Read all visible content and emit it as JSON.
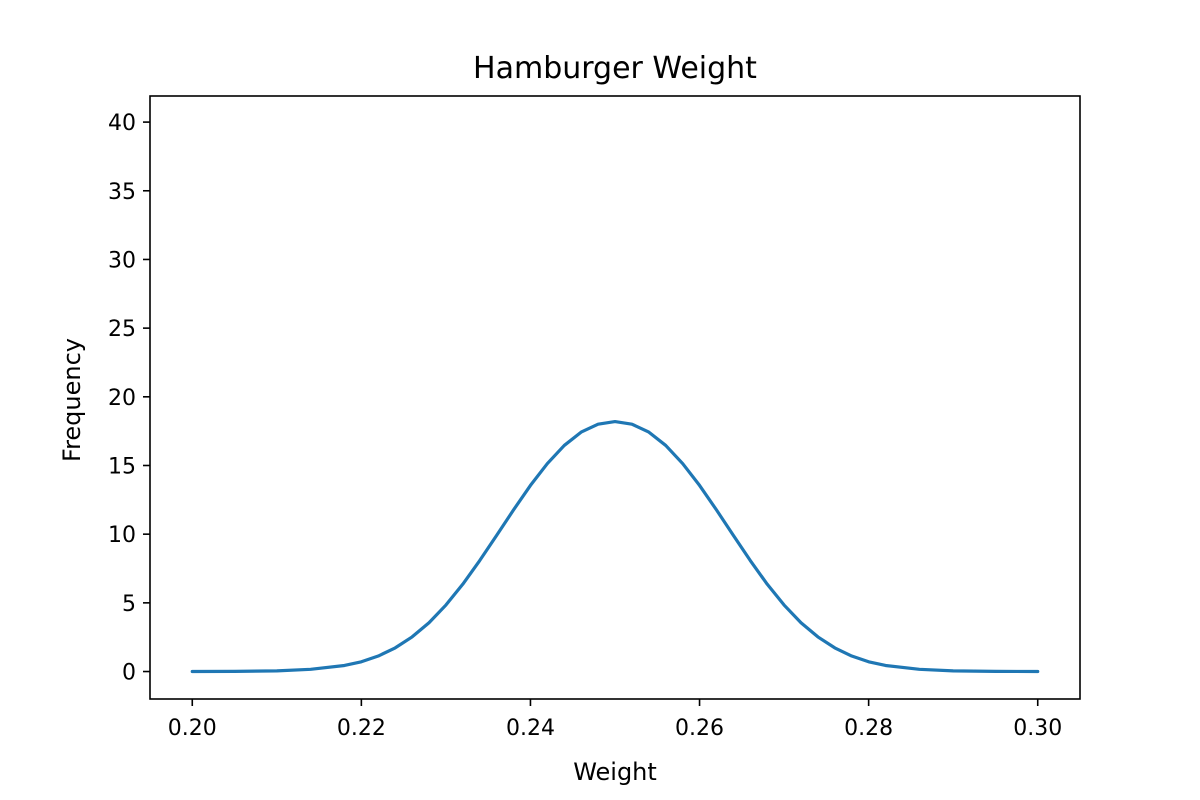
{
  "chart_data": {
    "type": "line",
    "title": "Hamburger Weight",
    "xlabel": "Weight",
    "ylabel": "Frequency",
    "xlim": [
      0.195,
      0.305
    ],
    "ylim": [
      -2,
      41.9
    ],
    "x_ticks": [
      0.2,
      0.22,
      0.24,
      0.26,
      0.28,
      0.3
    ],
    "x_tick_labels": [
      "0.20",
      "0.22",
      "0.24",
      "0.26",
      "0.28",
      "0.30"
    ],
    "y_ticks": [
      0,
      5,
      10,
      15,
      20,
      25,
      30,
      35,
      40
    ],
    "y_tick_labels": [
      "0",
      "5",
      "10",
      "15",
      "20",
      "25",
      "30",
      "35",
      "40"
    ],
    "grid": false,
    "series": [
      {
        "color": "#1f77b4",
        "x": [
          0.2,
          0.205,
          0.21,
          0.214,
          0.218,
          0.22,
          0.222,
          0.224,
          0.226,
          0.228,
          0.23,
          0.232,
          0.234,
          0.236,
          0.238,
          0.24,
          0.242,
          0.244,
          0.246,
          0.248,
          0.25,
          0.252,
          0.254,
          0.256,
          0.258,
          0.26,
          0.262,
          0.264,
          0.266,
          0.268,
          0.27,
          0.272,
          0.274,
          0.276,
          0.278,
          0.28,
          0.282,
          0.286,
          0.29,
          0.295,
          0.3
        ],
        "y": [
          0.0,
          0.01,
          0.05,
          0.16,
          0.44,
          0.71,
          1.13,
          1.72,
          2.52,
          3.55,
          4.84,
          6.36,
          8.08,
          9.91,
          11.77,
          13.55,
          15.14,
          16.46,
          17.43,
          18.01,
          18.2,
          18.01,
          17.43,
          16.46,
          15.14,
          13.55,
          11.77,
          9.91,
          8.08,
          6.36,
          4.84,
          3.55,
          2.52,
          1.72,
          1.13,
          0.71,
          0.44,
          0.16,
          0.05,
          0.01,
          0.0
        ]
      }
    ]
  }
}
